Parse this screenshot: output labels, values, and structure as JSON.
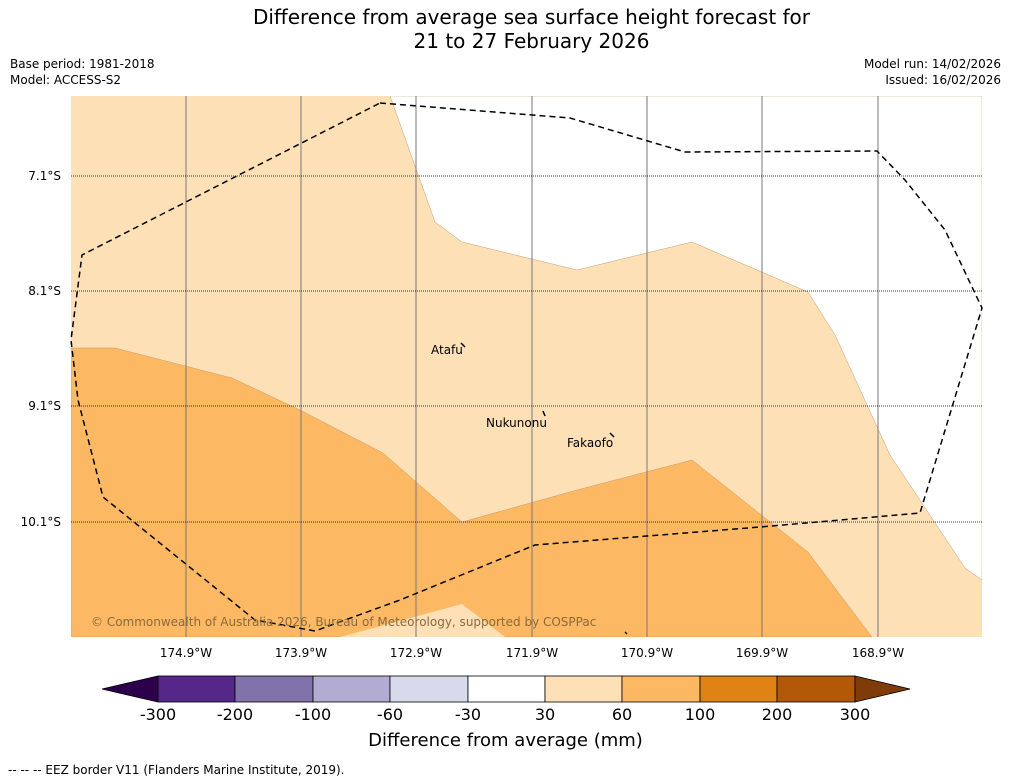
{
  "title_line1": "Difference from average sea surface height forecast for",
  "title_line2": "21 to 27 February 2026",
  "base_period": "Base period: 1981-2018",
  "model": "Model: ACCESS-S2",
  "model_run": "Model run: 14/02/2026",
  "issued": "Issued: 16/02/2026",
  "latitudes": [
    "7.1°S",
    "8.1°S",
    "9.1°S",
    "10.1°S"
  ],
  "longitudes": [
    "174.9°W",
    "173.9°W",
    "172.9°W",
    "171.9°W",
    "170.9°W",
    "169.9°W",
    "168.9°W"
  ],
  "islands": {
    "atafu": "Atafu",
    "nukunonu": "Nukunonu",
    "fakaofo": "Fakaofo"
  },
  "copyright": "© Commonwealth of Australia 2026, Bureau of Meteorology, supported by COSPPac",
  "colorbar": {
    "ticks": [
      "-300",
      "-200",
      "-100",
      "-60",
      "-30",
      "30",
      "60",
      "100",
      "200",
      "300"
    ],
    "colors": [
      "#2d004b",
      "#542788",
      "#8073ac",
      "#b2abd2",
      "#d8daeb",
      "#ffffff",
      "#fee0b6",
      "#fdb863",
      "#e08214",
      "#b35806",
      "#7f3b08"
    ],
    "label": "Difference from average (mm)"
  },
  "legend": "-- -- -- EEZ border V11 (Flanders Marine Institute, 2019)."
}
